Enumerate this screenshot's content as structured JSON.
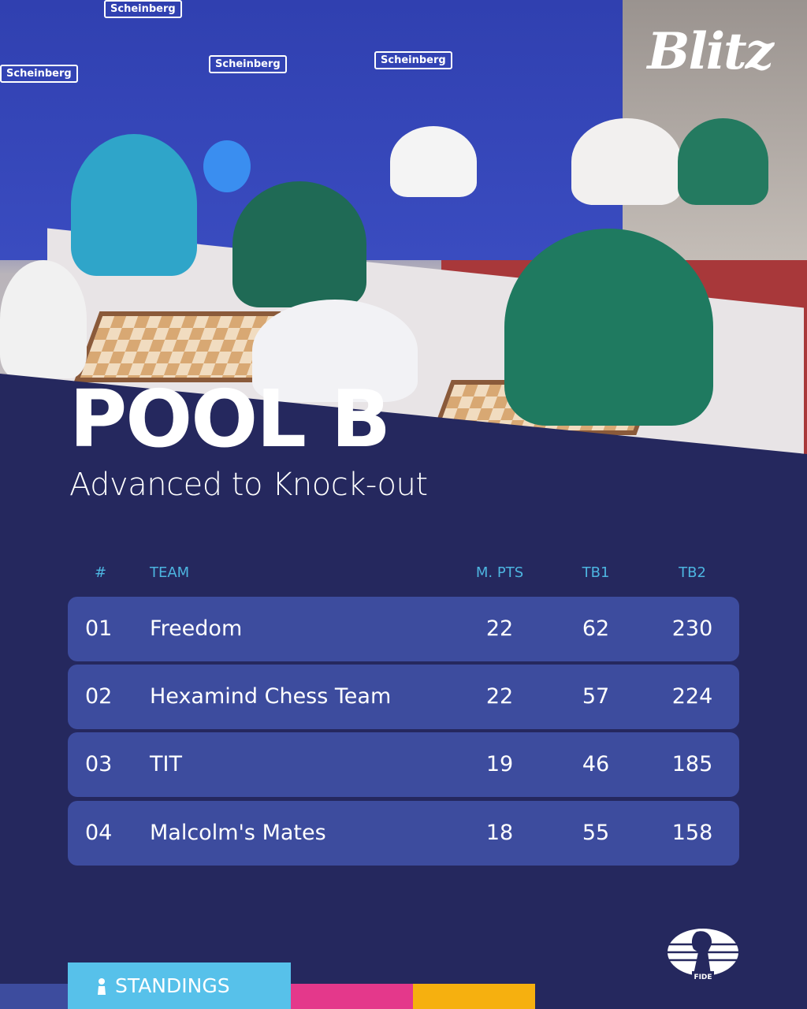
{
  "brand": {
    "event_logo": "Blitz",
    "org_logo": "FIDE",
    "sponsor": "Scheinberg"
  },
  "header": {
    "title": "POOL B",
    "subtitle": "Advanced to Knock-out"
  },
  "table": {
    "columns": [
      "#",
      "TEAM",
      "M. PTS",
      "TB1",
      "TB2"
    ],
    "rows": [
      {
        "rank": "01",
        "team": "Freedom",
        "mpts": "22",
        "tb1": "62",
        "tb2": "230"
      },
      {
        "rank": "02",
        "team": "Hexamind Chess Team",
        "mpts": "22",
        "tb1": "57",
        "tb2": "224"
      },
      {
        "rank": "03",
        "team": "TIT",
        "mpts": "19",
        "tb1": "46",
        "tb2": "185"
      },
      {
        "rank": "04",
        "team": "Malcolm's Mates",
        "mpts": "18",
        "tb1": "55",
        "tb2": "158"
      }
    ]
  },
  "footer": {
    "tab_label": "STANDINGS",
    "icon": "person-icon"
  },
  "colors": {
    "background": "#25285e",
    "row": "#3d4c9e",
    "header_text": "#4db5e0",
    "tab_blue": "#57c1ea",
    "tab_pink": "#e4388b",
    "tab_yellow": "#f6b00f",
    "tab_indigo": "#3d4c9e"
  }
}
